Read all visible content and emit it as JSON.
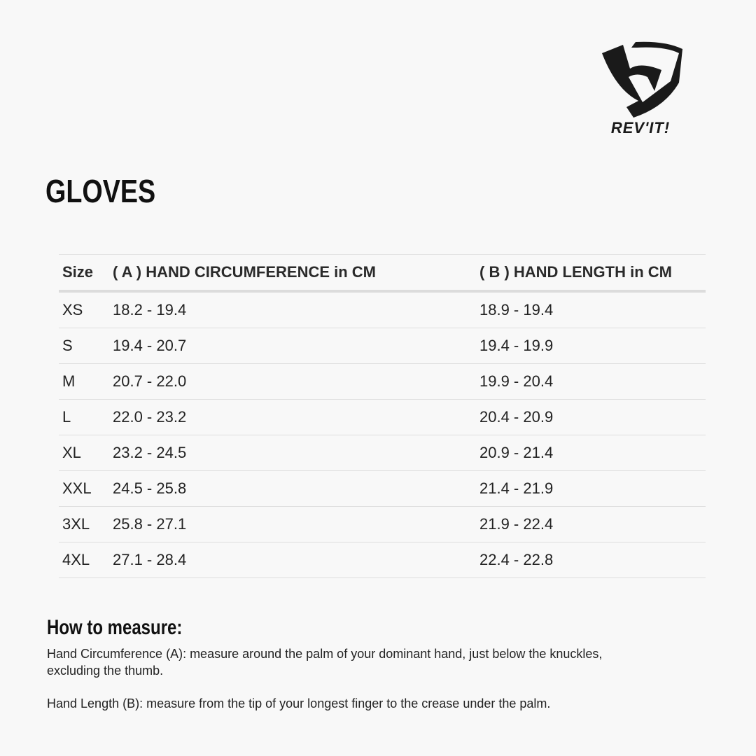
{
  "brand": {
    "logo_text": "REV'IT!"
  },
  "title": "GLOVES",
  "table": {
    "headers": [
      "Size",
      "( A ) HAND CIRCUMFERENCE in CM",
      "( B ) HAND LENGTH in CM"
    ],
    "rows": [
      [
        "XS",
        "18.2 - 19.4",
        "18.9 - 19.4"
      ],
      [
        "S",
        "19.4 - 20.7",
        "19.4 - 19.9"
      ],
      [
        "M",
        "20.7 - 22.0",
        "19.9 - 20.4"
      ],
      [
        "L",
        "22.0 - 23.2",
        "20.4 - 20.9"
      ],
      [
        "XL",
        "23.2 - 24.5",
        "20.9 - 21.4"
      ],
      [
        "XXL",
        "24.5 - 25.8",
        "21.4 - 21.9"
      ],
      [
        "3XL",
        "25.8 - 27.1",
        "21.9 - 22.4"
      ],
      [
        "4XL",
        "27.1 - 28.4",
        "22.4 - 22.8"
      ]
    ]
  },
  "how_to": {
    "heading": "How to measure:",
    "circumference": "Hand Circumference (A): measure around the palm of your dominant hand, just below the knuckles, excluding the thumb.",
    "length": "Hand Length (B): measure from the tip of your longest finger to the crease under the palm."
  }
}
